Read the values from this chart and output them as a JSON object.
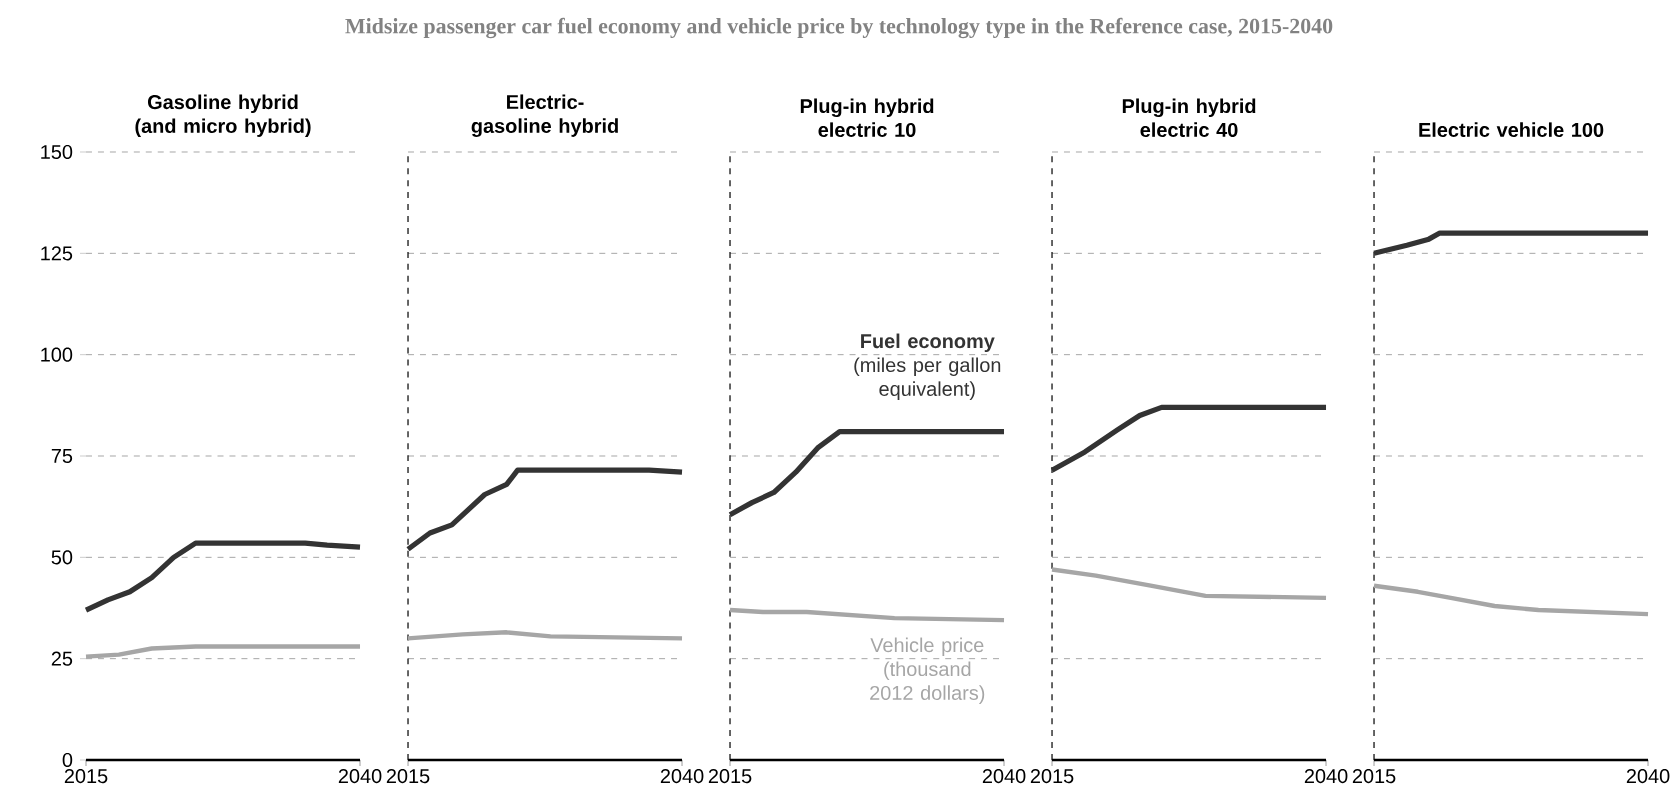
{
  "chart_data": [
    {
      "type": "line",
      "title": "Gasoline hybrid (and micro hybrid)",
      "annotations": [
        "Midsize passenger car fuel economy and vehicle price by technology type in the Reference case, 2015-2040"
      ],
      "xlim": [
        2015,
        2040
      ],
      "xticks": [
        2015,
        2040
      ],
      "ylim": [
        0,
        150
      ],
      "yticks": [
        0,
        25,
        50,
        75,
        100,
        125,
        150
      ],
      "grid": "y",
      "series": [
        {
          "color": "#333333",
          "x": [
            2015,
            2017,
            2019,
            2021,
            2023,
            2025,
            2030,
            2035,
            2037,
            2040
          ],
          "values": [
            37,
            39.5,
            41.5,
            45,
            50,
            53.5,
            53.5,
            53.5,
            53,
            52.5
          ]
        },
        {
          "color": "#a6a6a6",
          "x": [
            2015,
            2018,
            2021,
            2025,
            2040
          ],
          "values": [
            25.5,
            26,
            27.5,
            28,
            28
          ]
        }
      ]
    },
    {
      "type": "line",
      "title": "Electric-gasoline hybrid",
      "xlim": [
        2015,
        2040
      ],
      "xticks": [
        2015,
        2040
      ],
      "ylim": [
        0,
        150
      ],
      "yticks": [
        0,
        25,
        50,
        75,
        100,
        125,
        150
      ],
      "grid": "y",
      "tick_labels": "x",
      "series": [
        {
          "color": "#333333",
          "x": [
            2015,
            2017,
            2019,
            2021,
            2022,
            2024,
            2025,
            2037,
            2040
          ],
          "values": [
            52,
            56,
            58,
            63,
            65.5,
            68,
            71.5,
            71.5,
            71
          ]
        },
        {
          "color": "#a6a6a6",
          "x": [
            2015,
            2020,
            2024,
            2028,
            2040
          ],
          "values": [
            30,
            31,
            31.5,
            30.5,
            30
          ]
        }
      ]
    },
    {
      "type": "line",
      "title": "Plug-in hybrid electric 10",
      "xlim": [
        2015,
        2040
      ],
      "xticks": [
        2015,
        2040
      ],
      "ylim": [
        0,
        150
      ],
      "yticks": [
        0,
        25,
        50,
        75,
        100,
        125,
        150
      ],
      "grid": "y",
      "tick_labels": "x",
      "series": [
        {
          "name": "**Fuel economy** (miles per gallon equivalent)",
          "color": "#333333",
          "x": [
            2015,
            2017,
            2019,
            2021,
            2023,
            2025,
            2040
          ],
          "values": [
            60.5,
            63.5,
            66,
            71,
            77,
            81,
            81
          ]
        },
        {
          "name": "Vehicle price (thousand 2012 dollars)",
          "color": "#a6a6a6",
          "x": [
            2015,
            2018,
            2022,
            2030,
            2040
          ],
          "values": [
            37,
            36.5,
            36.5,
            35,
            34.5
          ]
        }
      ]
    },
    {
      "type": "line",
      "title": "Plug-in hybrid electric 40",
      "xlim": [
        2015,
        2040
      ],
      "xticks": [
        2015,
        2040
      ],
      "ylim": [
        0,
        150
      ],
      "yticks": [
        0,
        25,
        50,
        75,
        100,
        125,
        150
      ],
      "grid": "y",
      "tick_labels": "x",
      "series": [
        {
          "color": "#333333",
          "x": [
            2015,
            2018,
            2021,
            2023,
            2025,
            2040
          ],
          "values": [
            71.5,
            76,
            81.5,
            85,
            87,
            87
          ]
        },
        {
          "color": "#a6a6a6",
          "x": [
            2015,
            2019,
            2024,
            2029,
            2040
          ],
          "values": [
            47,
            45.5,
            43,
            40.5,
            40
          ]
        }
      ]
    },
    {
      "type": "line",
      "title": "Electric vehicle 100",
      "xlim": [
        2015,
        2040
      ],
      "xticks": [
        2015,
        2040
      ],
      "ylim": [
        0,
        150
      ],
      "yticks": [
        0,
        25,
        50,
        75,
        100,
        125,
        150
      ],
      "grid": "y",
      "tick_labels": "x",
      "series": [
        {
          "color": "#333333",
          "x": [
            2015,
            2018,
            2020,
            2021,
            2040
          ],
          "values": [
            125,
            127,
            128.5,
            130,
            130
          ]
        },
        {
          "color": "#a6a6a6",
          "x": [
            2015,
            2019,
            2022,
            2026,
            2030,
            2040
          ],
          "values": [
            43,
            41.5,
            40,
            38,
            37,
            36
          ]
        }
      ]
    }
  ]
}
